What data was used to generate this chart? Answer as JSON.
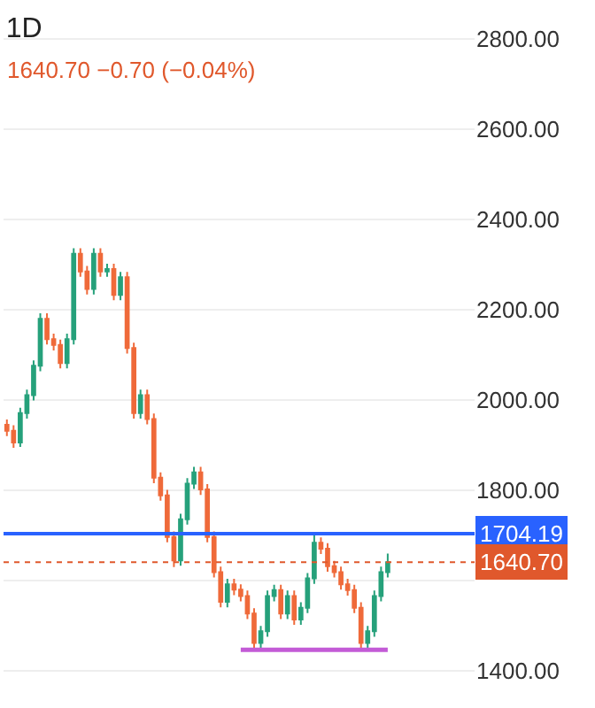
{
  "chart_data": {
    "type": "candlestick",
    "title": "1D",
    "subtitle": "1640.70 −0.70 (−0.04%)",
    "categories": [
      null,
      null,
      null,
      null,
      null,
      null,
      null,
      null,
      null,
      null,
      null,
      null,
      null,
      null,
      null,
      null,
      null,
      null,
      null,
      null,
      null,
      null,
      null,
      null,
      null,
      null,
      null,
      null,
      null,
      null,
      null,
      null,
      null,
      null,
      null,
      null,
      null,
      null,
      null,
      null,
      null,
      null,
      null,
      null,
      null,
      null,
      null,
      null,
      null,
      null,
      null,
      null,
      null,
      null,
      null,
      null,
      null,
      null
    ],
    "ohlc": [
      [
        1945,
        1957,
        1920,
        1932
      ],
      [
        1932,
        1944,
        1894,
        1906
      ],
      [
        1906,
        1983,
        1896,
        1971
      ],
      [
        1971,
        2023,
        1959,
        2011
      ],
      [
        2011,
        2088,
        1999,
        2076
      ],
      [
        2076,
        2192,
        2064,
        2180
      ],
      [
        2180,
        2192,
        2123,
        2135
      ],
      [
        2135,
        2147,
        2110,
        2122
      ],
      [
        2122,
        2134,
        2070,
        2082
      ],
      [
        2082,
        2147,
        2070,
        2135
      ],
      [
        2135,
        2336,
        2123,
        2324
      ],
      [
        2324,
        2336,
        2273,
        2285
      ],
      [
        2285,
        2297,
        2234,
        2246
      ],
      [
        2246,
        2336,
        2234,
        2324
      ],
      [
        2324,
        2336,
        2273,
        2285
      ],
      [
        2285,
        2302,
        2273,
        2290
      ],
      [
        2290,
        2302,
        2221,
        2233
      ],
      [
        2233,
        2284,
        2221,
        2272
      ],
      [
        2272,
        2284,
        2103,
        2115
      ],
      [
        2115,
        2127,
        1959,
        1971
      ],
      [
        1971,
        2023,
        1959,
        2011
      ],
      [
        2011,
        2023,
        1946,
        1958
      ],
      [
        1958,
        1970,
        1816,
        1828
      ],
      [
        1828,
        1840,
        1777,
        1789
      ],
      [
        1789,
        1801,
        1685,
        1697
      ],
      [
        1697,
        1709,
        1630,
        1645
      ],
      [
        1645,
        1748,
        1633,
        1736
      ],
      [
        1736,
        1827,
        1724,
        1815
      ],
      [
        1815,
        1852,
        1803,
        1840
      ],
      [
        1840,
        1852,
        1790,
        1802
      ],
      [
        1802,
        1814,
        1685,
        1697
      ],
      [
        1697,
        1709,
        1607,
        1619
      ],
      [
        1619,
        1631,
        1541,
        1553
      ],
      [
        1553,
        1604,
        1541,
        1592
      ],
      [
        1592,
        1604,
        1568,
        1580
      ],
      [
        1580,
        1592,
        1554,
        1566
      ],
      [
        1566,
        1578,
        1515,
        1527
      ],
      [
        1527,
        1539,
        1450,
        1462
      ],
      [
        1462,
        1500,
        1450,
        1488
      ],
      [
        1488,
        1578,
        1476,
        1566
      ],
      [
        1566,
        1591,
        1554,
        1579
      ],
      [
        1579,
        1591,
        1515,
        1527
      ],
      [
        1527,
        1578,
        1515,
        1566
      ],
      [
        1566,
        1578,
        1502,
        1514
      ],
      [
        1514,
        1552,
        1502,
        1540
      ],
      [
        1540,
        1617,
        1528,
        1605
      ],
      [
        1605,
        1704,
        1593,
        1684
      ],
      [
        1684,
        1696,
        1659,
        1671
      ],
      [
        1671,
        1683,
        1620,
        1632
      ],
      [
        1632,
        1644,
        1607,
        1619
      ],
      [
        1619,
        1631,
        1580,
        1592
      ],
      [
        1592,
        1604,
        1567,
        1579
      ],
      [
        1579,
        1591,
        1528,
        1540
      ],
      [
        1540,
        1552,
        1450,
        1462
      ],
      [
        1462,
        1500,
        1450,
        1488
      ],
      [
        1488,
        1578,
        1476,
        1566
      ],
      [
        1566,
        1631,
        1554,
        1619
      ],
      [
        1619,
        1660,
        1607,
        1640.7
      ]
    ],
    "colors": [
      "#ef6a3a",
      "#ef6a3a",
      "#26a17b",
      "#26a17b",
      "#26a17b",
      "#26a17b",
      "#ef6a3a",
      "#ef6a3a",
      "#ef6a3a",
      "#26a17b",
      "#26a17b",
      "#ef6a3a",
      "#ef6a3a",
      "#26a17b",
      "#ef6a3a",
      "#26a17b",
      "#ef6a3a",
      "#26a17b",
      "#ef6a3a",
      "#ef6a3a",
      "#26a17b",
      "#ef6a3a",
      "#ef6a3a",
      "#ef6a3a",
      "#ef6a3a",
      "#ef6a3a",
      "#26a17b",
      "#26a17b",
      "#26a17b",
      "#ef6a3a",
      "#ef6a3a",
      "#ef6a3a",
      "#ef6a3a",
      "#26a17b",
      "#ef6a3a",
      "#ef6a3a",
      "#ef6a3a",
      "#ef6a3a",
      "#26a17b",
      "#26a17b",
      "#26a17b",
      "#ef6a3a",
      "#26a17b",
      "#ef6a3a",
      "#26a17b",
      "#26a17b",
      "#26a17b",
      "#ef6a3a",
      "#ef6a3a",
      "#ef6a3a",
      "#ef6a3a",
      "#ef6a3a",
      "#ef6a3a",
      "#ef6a3a",
      "#26a17b",
      "#26a17b",
      "#26a17b",
      "#26a17b"
    ],
    "series": [
      {
        "type": "line",
        "color": "#c35bd6",
        "values": [
          null,
          null,
          null,
          null,
          null,
          null,
          null,
          null,
          null,
          null,
          null,
          null,
          null,
          null,
          null,
          null,
          null,
          null,
          null,
          null,
          null,
          null,
          null,
          null,
          null,
          null,
          null,
          null,
          null,
          null,
          null,
          null,
          null,
          null,
          null,
          1447,
          1447,
          1447,
          1447,
          1447,
          1447,
          1447,
          1447,
          1447,
          1447,
          1447,
          1447,
          1447,
          1447,
          1447,
          1447,
          1447,
          1447,
          1447,
          1447,
          1447,
          1447,
          1447
        ]
      }
    ],
    "ref_lines": [
      {
        "axis": "y",
        "value": 1704.19,
        "label": "1704.19",
        "color": "#2962ff",
        "line_style": "solid"
      },
      {
        "axis": "y",
        "value": 1640.7,
        "label": "1640.70",
        "color": "#e0582c",
        "line_style": "dotted"
      }
    ],
    "ylim": [
      1318,
      2886
    ],
    "yticks": [
      {
        "value": 1400,
        "label": "1400.00"
      },
      {
        "value": 1600,
        "label": null
      },
      {
        "value": 1800,
        "label": "1800.00"
      },
      {
        "value": 2000,
        "label": "2000.00"
      },
      {
        "value": 2200,
        "label": "2200.00"
      },
      {
        "value": 2400,
        "label": "2400.00"
      },
      {
        "value": 2600,
        "label": "2600.00"
      },
      {
        "value": 2800,
        "label": "2800.00"
      }
    ],
    "grid": "y"
  }
}
